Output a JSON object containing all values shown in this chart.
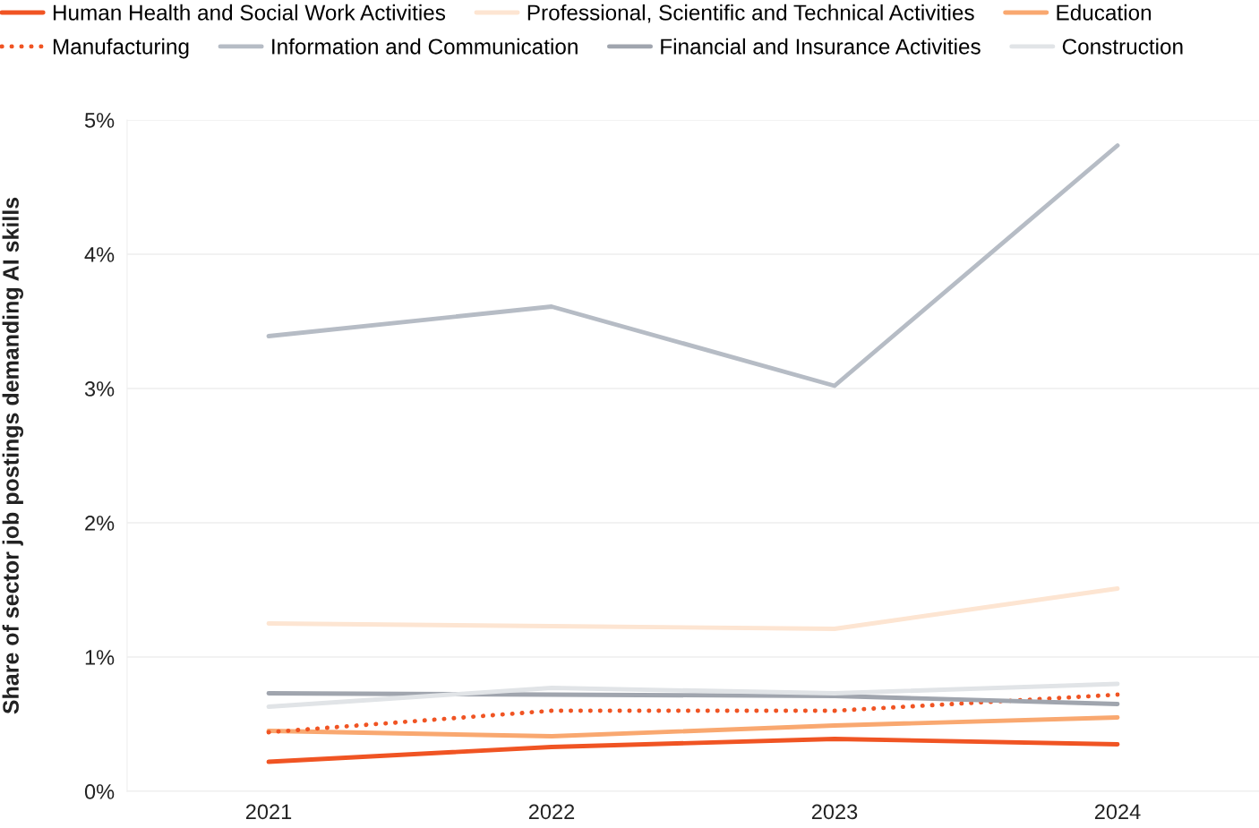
{
  "chart_data": {
    "type": "line",
    "ylabel": "Share of sector job postings demanding AI skills",
    "x": [
      2021,
      2022,
      2023,
      2024
    ],
    "xlim": [
      2020.5,
      2024.5
    ],
    "xticks": [
      2021,
      2022,
      2023,
      2024
    ],
    "ylim": [
      0,
      5
    ],
    "yticks": [
      {
        "value": 0,
        "label": "0%"
      },
      {
        "value": 1,
        "label": "1%"
      },
      {
        "value": 2,
        "label": "2%"
      },
      {
        "value": 3,
        "label": "3%"
      },
      {
        "value": 4,
        "label": "4%"
      },
      {
        "value": 5,
        "label": "5%"
      }
    ],
    "grid": "y",
    "legend": "top",
    "marker": "none",
    "series": [
      {
        "name": "Human Health and Social Work Activities",
        "color": "#f05423",
        "values": [
          0.22,
          0.33,
          0.39,
          0.35
        ]
      },
      {
        "name": "Professional, Scientific and Technical Activities",
        "color": "#fde5d2",
        "values": [
          1.25,
          1.23,
          1.21,
          1.51
        ]
      },
      {
        "name": "Education",
        "color": "#f9a870",
        "values": [
          0.45,
          0.41,
          0.49,
          0.55
        ]
      },
      {
        "name": "Manufacturing",
        "color": "#f05423",
        "line_style": "dotted",
        "values": [
          0.44,
          0.6,
          0.6,
          0.72
        ]
      },
      {
        "name": "Information and Communication",
        "color": "#b6bcc5",
        "values": [
          3.39,
          3.61,
          3.02,
          4.81
        ]
      },
      {
        "name": "Financial and Insurance Activities",
        "color": "#a0a5ae",
        "values": [
          0.73,
          0.72,
          0.71,
          0.65
        ]
      },
      {
        "name": "Construction",
        "color": "#e1e4e7",
        "values": [
          0.63,
          0.77,
          0.73,
          0.8
        ]
      }
    ]
  }
}
